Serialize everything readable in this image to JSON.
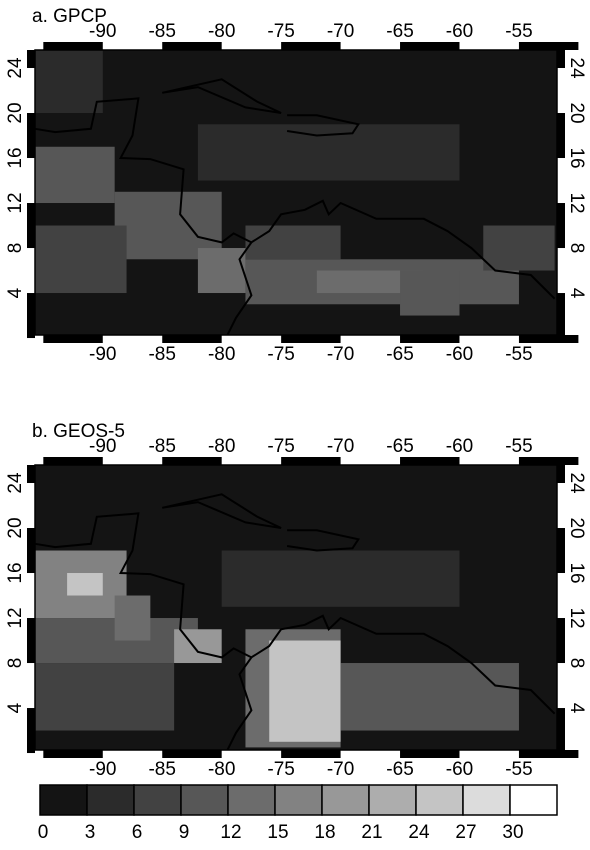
{
  "panels": [
    {
      "label": "a. GPCP",
      "xticks": [
        -90,
        -85,
        -80,
        -75,
        -70,
        -65,
        -60,
        -55
      ],
      "yticks": [
        4,
        8,
        12,
        16,
        20,
        24
      ]
    },
    {
      "label": "b. GEOS-5",
      "xticks": [
        -90,
        -85,
        -80,
        -75,
        -70,
        -65,
        -60,
        -55
      ],
      "yticks": [
        4,
        8,
        12,
        16,
        20,
        24
      ]
    }
  ],
  "colorbar": {
    "ticks": [
      0,
      3,
      6,
      9,
      12,
      15,
      18,
      21,
      24,
      27,
      30
    ],
    "colors": [
      "#141414",
      "#2b2b2b",
      "#424242",
      "#575757",
      "#6c6c6c",
      "#828282",
      "#989898",
      "#adadad",
      "#c4c4c4",
      "#dcdcdc",
      "#ffffff"
    ]
  }
}
